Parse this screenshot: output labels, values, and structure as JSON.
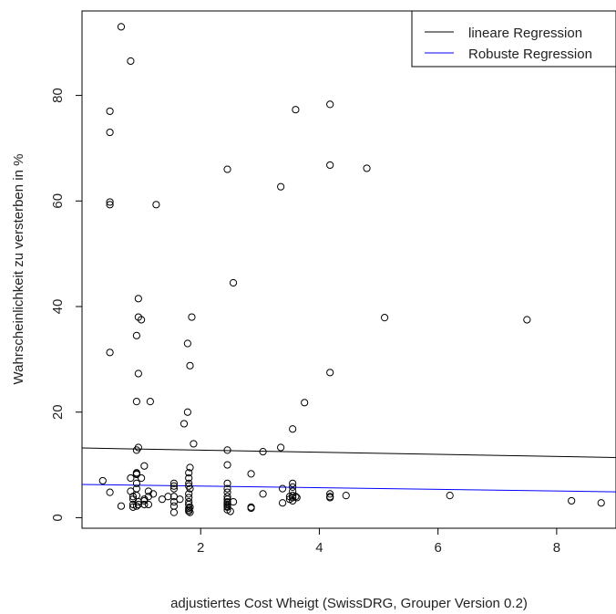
{
  "chart_data": {
    "type": "scatter",
    "xlabel": "adjustiertes Cost Wheigt (SwissDRG, Grouper Version 0.2)",
    "ylabel": "Wahrscheinlichkeit zu versterben in %",
    "xlim": [
      0.0,
      9.0
    ],
    "ylim": [
      -2.0,
      96.0
    ],
    "x_ticks": [
      2,
      4,
      6,
      8
    ],
    "x_tick_labels": [
      "2",
      "4",
      "6",
      "8"
    ],
    "y_ticks": [
      0,
      20,
      40,
      60,
      80
    ],
    "y_tick_labels": [
      "0",
      "20",
      "40",
      "60",
      "80"
    ],
    "grid": false,
    "legend_position": "top-right",
    "legend": [
      {
        "label": "lineare Regression",
        "color": "#000000"
      },
      {
        "label": "Robuste Regression",
        "color": "#0000ff"
      }
    ],
    "lines": [
      {
        "name": "lineare Regression",
        "color": "#000000",
        "x": [
          0.0,
          9.0
        ],
        "y": [
          13.2,
          11.4
        ]
      },
      {
        "name": "Robuste Regression",
        "color": "#0000ff",
        "x": [
          0.0,
          9.0
        ],
        "y": [
          6.3,
          4.9
        ]
      }
    ],
    "points": {
      "x": [
        0.66,
        0.82,
        0.47,
        0.47,
        0.47,
        0.47,
        1.25,
        0.47,
        0.95,
        0.95,
        1.0,
        0.92,
        0.95,
        0.92,
        0.95,
        0.92,
        1.15,
        0.92,
        0.92,
        0.92,
        1.05,
        1.0,
        0.92,
        0.82,
        0.92,
        0.82,
        0.86,
        0.86,
        0.92,
        0.95,
        1.05,
        1.05,
        1.12,
        1.12,
        1.12,
        1.05,
        0.95,
        0.92,
        0.86,
        0.86,
        0.35,
        0.47,
        0.66,
        1.2,
        1.35,
        1.45,
        1.55,
        1.55,
        1.55,
        1.55,
        1.55,
        1.55,
        1.55,
        1.65,
        1.72,
        1.78,
        1.78,
        1.82,
        1.85,
        1.88,
        1.82,
        1.8,
        1.8,
        1.8,
        1.8,
        1.8,
        1.8,
        1.8,
        1.82,
        1.8,
        1.8,
        1.8,
        1.82,
        1.8,
        1.82,
        2.45,
        2.55,
        2.45,
        2.45,
        2.45,
        2.45,
        2.45,
        2.45,
        2.45,
        2.45,
        2.45,
        2.45,
        2.45,
        2.45,
        2.45,
        2.5,
        2.55,
        2.85,
        2.85,
        2.85,
        3.05,
        3.05,
        3.35,
        3.35,
        3.38,
        3.6,
        3.38,
        3.55,
        3.55,
        3.55,
        3.55,
        3.55,
        3.55,
        3.55,
        3.5,
        3.5,
        3.6,
        3.62,
        3.75,
        4.18,
        4.18,
        4.18,
        4.18,
        4.18,
        4.18,
        4.45,
        4.8,
        5.1,
        6.2,
        7.5,
        8.25,
        8.75
      ],
      "y": [
        93.0,
        86.5,
        77.0,
        73.0,
        59.8,
        59.3,
        59.3,
        31.3,
        41.5,
        38.0,
        37.5,
        34.5,
        27.3,
        22.0,
        13.3,
        12.8,
        22.0,
        8.5,
        8.3,
        8.2,
        9.8,
        7.5,
        6.5,
        7.5,
        5.5,
        5.0,
        4.0,
        3.5,
        4.2,
        3.0,
        3.5,
        2.5,
        5.0,
        4.0,
        2.5,
        3.2,
        2.5,
        2.2,
        2.5,
        2.0,
        7.0,
        4.8,
        2.2,
        4.5,
        3.5,
        4.0,
        6.5,
        6.0,
        5.5,
        4.0,
        3.0,
        2.2,
        1.0,
        3.5,
        17.8,
        33.0,
        20.0,
        28.8,
        38.0,
        14.0,
        9.5,
        8.5,
        7.5,
        6.0,
        4.5,
        3.8,
        3.0,
        2.5,
        2.0,
        1.8,
        1.5,
        1.2,
        1.0,
        6.5,
        5.5,
        66.0,
        44.5,
        12.8,
        10.0,
        6.5,
        5.5,
        4.8,
        4.0,
        3.5,
        3.0,
        2.8,
        2.5,
        2.2,
        2.0,
        1.5,
        1.2,
        3.0,
        8.3,
        2.0,
        1.8,
        12.5,
        4.5,
        62.7,
        13.3,
        5.5,
        77.3,
        2.8,
        16.8,
        6.5,
        5.8,
        5.0,
        4.2,
        3.8,
        3.2,
        4.0,
        3.5,
        4.0,
        3.8,
        21.8,
        78.3,
        66.8,
        27.5,
        4.5,
        4.0,
        3.8,
        4.2,
        66.2,
        37.9,
        4.2,
        37.5,
        3.2,
        2.8
      ]
    }
  }
}
